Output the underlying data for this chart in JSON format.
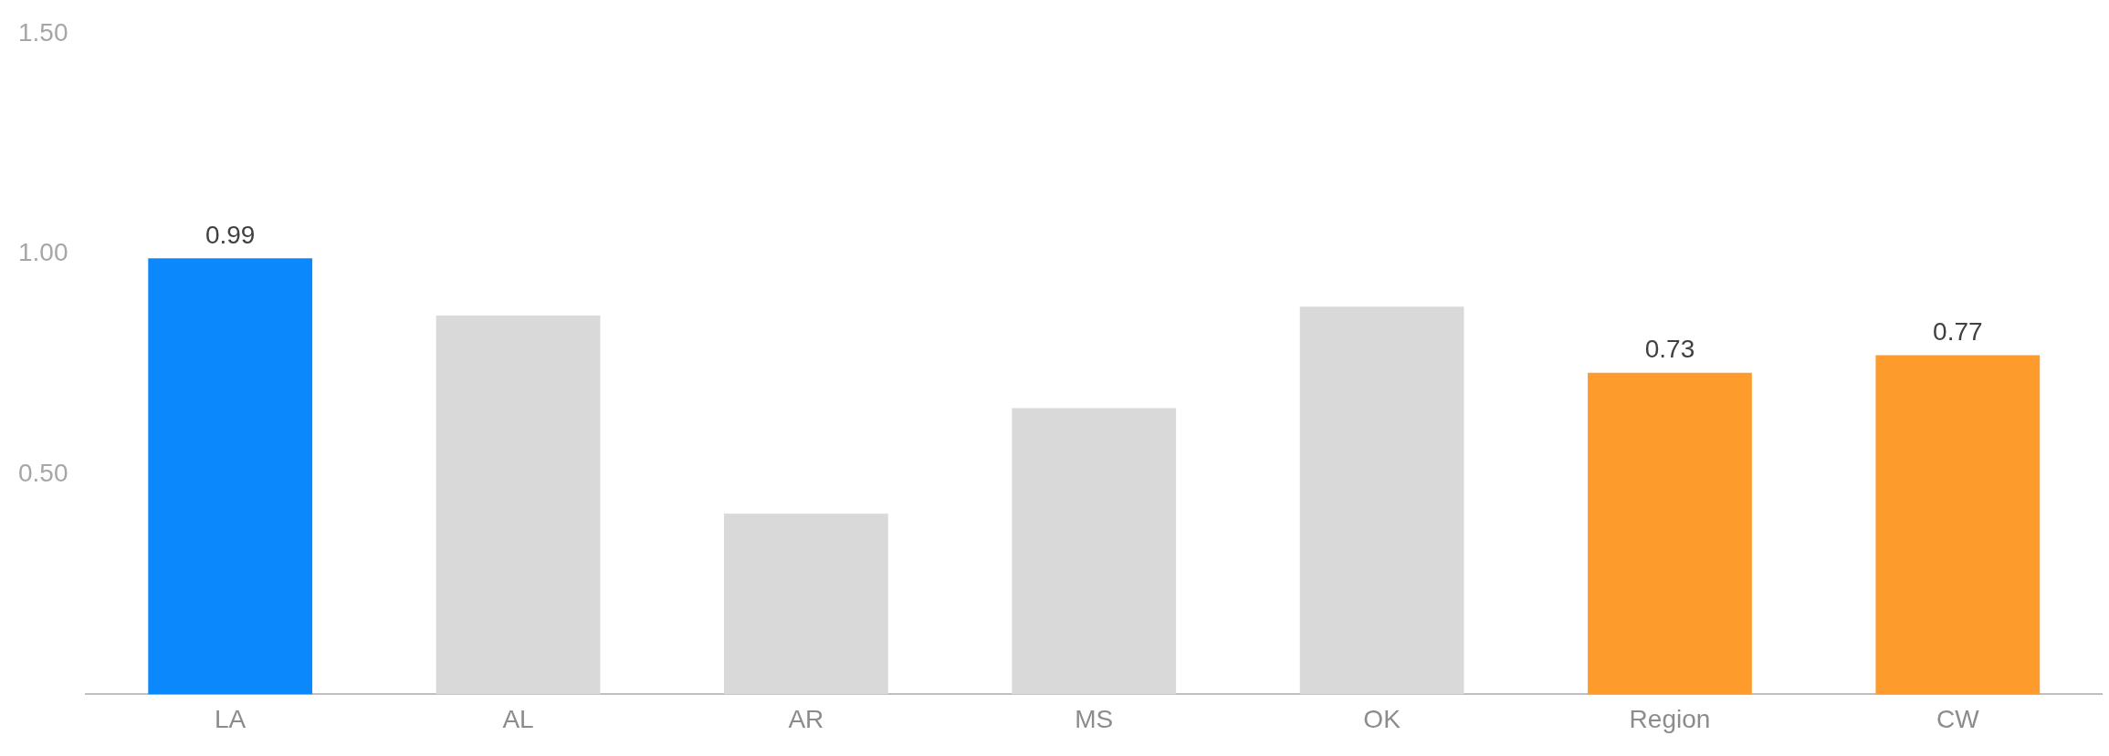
{
  "chart_data": {
    "type": "bar",
    "categories": [
      "LA",
      "AL",
      "AR",
      "MS",
      "OK",
      "Region",
      "CW"
    ],
    "values": [
      0.99,
      0.86,
      0.41,
      0.65,
      0.88,
      0.73,
      0.77
    ],
    "colors": [
      "#0a88fc",
      "#d9d9d9",
      "#d9d9d9",
      "#d9d9d9",
      "#d9d9d9",
      "#fd9b2c",
      "#fd9b2c"
    ],
    "value_labels": [
      "0.99",
      null,
      null,
      null,
      null,
      "0.73",
      "0.77"
    ],
    "ylim": [
      0,
      1.5
    ],
    "yticks": [
      {
        "value": 0.5,
        "label": "0.50"
      },
      {
        "value": 1,
        "label": "1.00"
      },
      {
        "value": 1.5,
        "label": "1.50"
      }
    ],
    "grid": false,
    "legend": false
  }
}
